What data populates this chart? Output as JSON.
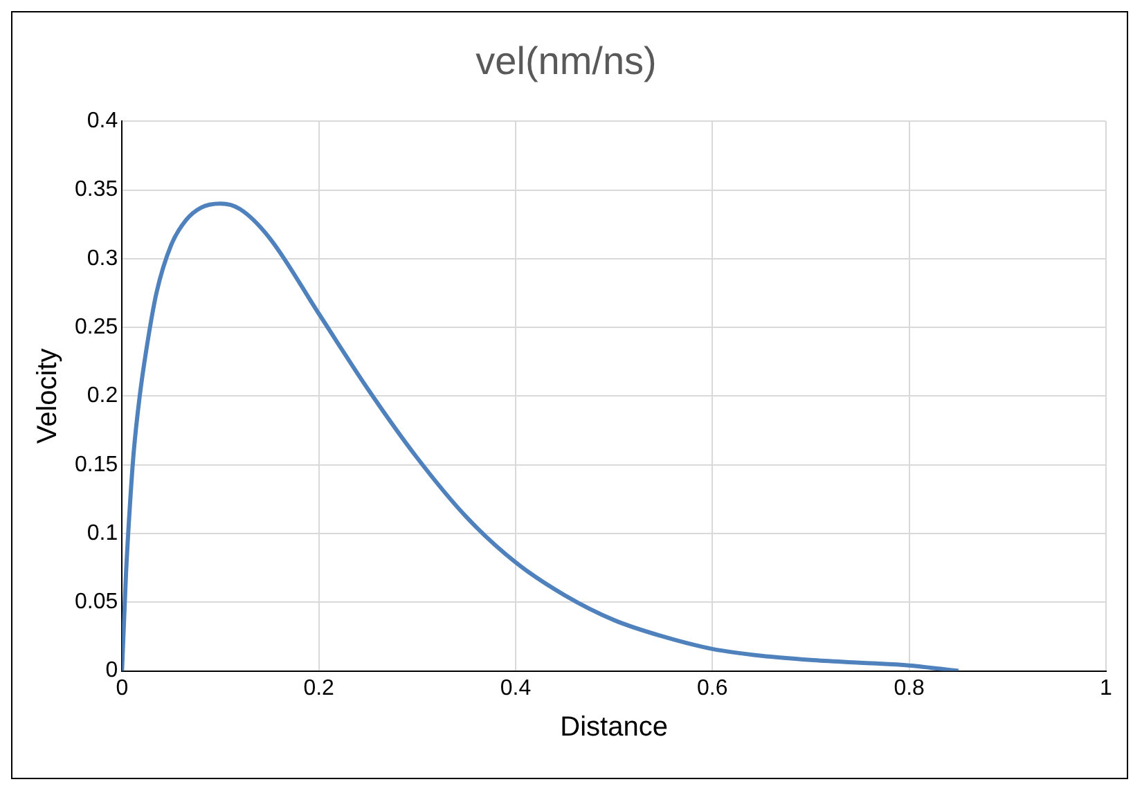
{
  "chart_data": {
    "type": "line",
    "title": "vel(nm/ns)",
    "xlabel": "Distance",
    "ylabel": "Velocity",
    "x": [
      0,
      0.004,
      0.008,
      0.012,
      0.018,
      0.025,
      0.035,
      0.05,
      0.065,
      0.08,
      0.1,
      0.12,
      0.15,
      0.2,
      0.25,
      0.3,
      0.35,
      0.4,
      0.45,
      0.5,
      0.55,
      0.6,
      0.65,
      0.7,
      0.75,
      0.8,
      0.85
    ],
    "series": [
      {
        "color": "#4f81bd",
        "values": [
          0,
          0.07,
          0.12,
          0.16,
          0.2,
          0.235,
          0.275,
          0.31,
          0.328,
          0.337,
          0.34,
          0.336,
          0.315,
          0.26,
          0.205,
          0.155,
          0.112,
          0.079,
          0.055,
          0.037,
          0.025,
          0.016,
          0.011,
          0.008,
          0.006,
          0.004,
          0
        ]
      }
    ],
    "xlim": [
      0,
      1
    ],
    "xticks": [
      0,
      0.2,
      0.4,
      0.6,
      0.8,
      1
    ],
    "ylim": [
      0,
      0.4
    ],
    "yticks": [
      0,
      0.05,
      0.1,
      0.15,
      0.2,
      0.25,
      0.3,
      0.35,
      0.4
    ],
    "grid": true,
    "legend": false,
    "marker": "none",
    "line_style": "solid"
  }
}
